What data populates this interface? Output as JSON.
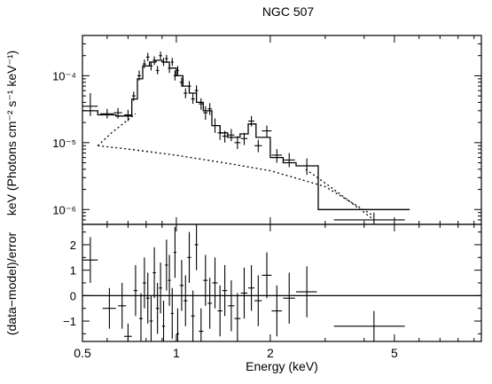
{
  "chart_data": {
    "type": "scatter",
    "title": "NGC 507",
    "xlabel": "Energy (keV)",
    "xscale": "log",
    "xlim": [
      0.5,
      9.5
    ],
    "x_ticks": [
      {
        "value": 0.5,
        "label": "0.5"
      },
      {
        "value": 1,
        "label": "1"
      },
      {
        "value": 2,
        "label": "2"
      },
      {
        "value": 5,
        "label": "5"
      }
    ],
    "panels": {
      "spectrum": {
        "ylabel": "keV (Photons cm⁻² s⁻¹ keV⁻¹)",
        "yscale": "log",
        "ylim": [
          6e-07,
          0.0004
        ],
        "y_ticks": [
          {
            "value": 0.0001,
            "label": "10⁻⁴"
          },
          {
            "value": 1e-05,
            "label": "10⁻⁵"
          },
          {
            "value": 1e-06,
            "label": "10⁻⁶"
          }
        ],
        "data_points": [
          {
            "x": 0.53,
            "xerr": 0.03,
            "y": 3.5e-05,
            "yerr": [
              2.5e-05,
              5.5e-05
            ]
          },
          {
            "x": 0.6,
            "xerr": 0.03,
            "y": 2.7e-05,
            "yerr": [
              2.3e-05,
              3.2e-05
            ]
          },
          {
            "x": 0.65,
            "xerr": 0.02,
            "y": 2.8e-05,
            "yerr": [
              2.3e-05,
              3.3e-05
            ]
          },
          {
            "x": 0.7,
            "xerr": 0.02,
            "y": 2.6e-05,
            "yerr": [
              2.1e-05,
              3.1e-05
            ]
          },
          {
            "x": 0.73,
            "xerr": 0.01,
            "y": 5e-05,
            "yerr": [
              4.2e-05,
              5.8e-05
            ]
          },
          {
            "x": 0.76,
            "xerr": 0.01,
            "y": 0.0001,
            "yerr": [
              8.5e-05,
              0.00012
            ]
          },
          {
            "x": 0.79,
            "xerr": 0.01,
            "y": 0.00015,
            "yerr": [
              0.00013,
              0.000175
            ]
          },
          {
            "x": 0.81,
            "xerr": 0.01,
            "y": 0.00019,
            "yerr": [
              0.000165,
              0.00022
            ]
          },
          {
            "x": 0.83,
            "xerr": 0.01,
            "y": 0.00014,
            "yerr": [
              0.00012,
              0.00016
            ]
          },
          {
            "x": 0.85,
            "xerr": 0.01,
            "y": 0.00017,
            "yerr": [
              0.000145,
              0.000195
            ]
          },
          {
            "x": 0.87,
            "xerr": 0.01,
            "y": 0.00012,
            "yerr": [
              0.000105,
              0.00014
            ]
          },
          {
            "x": 0.89,
            "xerr": 0.01,
            "y": 0.0002,
            "yerr": [
              0.000175,
              0.00023
            ]
          },
          {
            "x": 0.91,
            "xerr": 0.01,
            "y": 0.00016,
            "yerr": [
              0.00014,
              0.000185
            ]
          },
          {
            "x": 0.93,
            "xerr": 0.01,
            "y": 0.00018,
            "yerr": [
              0.000155,
              0.000205
            ]
          },
          {
            "x": 0.95,
            "xerr": 0.01,
            "y": 0.00013,
            "yerr": [
              0.00011,
              0.00015
            ]
          },
          {
            "x": 0.97,
            "xerr": 0.01,
            "y": 0.00016,
            "yerr": [
              0.00014,
              0.000185
            ]
          },
          {
            "x": 0.99,
            "xerr": 0.01,
            "y": 0.0001,
            "yerr": [
              8.5e-05,
              0.00012
            ]
          },
          {
            "x": 1.01,
            "xerr": 0.01,
            "y": 0.00012,
            "yerr": [
              0.0001,
              0.00014
            ]
          },
          {
            "x": 1.04,
            "xerr": 0.015,
            "y": 8e-05,
            "yerr": [
              6.8e-05,
              9.4e-05
            ]
          },
          {
            "x": 1.07,
            "xerr": 0.015,
            "y": 5.5e-05,
            "yerr": [
              4.6e-05,
              6.5e-05
            ]
          },
          {
            "x": 1.1,
            "xerr": 0.015,
            "y": 7e-05,
            "yerr": [
              5.9e-05,
              8.3e-05
            ]
          },
          {
            "x": 1.13,
            "xerr": 0.015,
            "y": 4.5e-05,
            "yerr": [
              3.8e-05,
              5.4e-05
            ]
          },
          {
            "x": 1.16,
            "xerr": 0.015,
            "y": 6e-05,
            "yerr": [
              5e-05,
              7.2e-05
            ]
          },
          {
            "x": 1.2,
            "xerr": 0.02,
            "y": 3.8e-05,
            "yerr": [
              3.1e-05,
              4.6e-05
            ]
          },
          {
            "x": 1.24,
            "xerr": 0.02,
            "y": 2.8e-05,
            "yerr": [
              2.2e-05,
              3.5e-05
            ]
          },
          {
            "x": 1.28,
            "xerr": 0.02,
            "y": 3.2e-05,
            "yerr": [
              2.6e-05,
              3.9e-05
            ]
          },
          {
            "x": 1.33,
            "xerr": 0.025,
            "y": 1.8e-05,
            "yerr": [
              1.4e-05,
              2.3e-05
            ]
          },
          {
            "x": 1.38,
            "xerr": 0.025,
            "y": 1.4e-05,
            "yerr": [
              1.1e-05,
              1.8e-05
            ]
          },
          {
            "x": 1.43,
            "xerr": 0.025,
            "y": 1.25e-05,
            "yerr": [
              1e-05,
              1.5e-05
            ]
          },
          {
            "x": 1.5,
            "xerr": 0.035,
            "y": 1.3e-05,
            "yerr": [
              1.05e-05,
              1.6e-05
            ]
          },
          {
            "x": 1.57,
            "xerr": 0.035,
            "y": 1e-05,
            "yerr": [
              8e-06,
              1.25e-05
            ]
          },
          {
            "x": 1.65,
            "xerr": 0.04,
            "y": 1.15e-05,
            "yerr": [
              9.2e-06,
              1.4e-05
            ]
          },
          {
            "x": 1.74,
            "xerr": 0.04,
            "y": 2.1e-05,
            "yerr": [
              1.75e-05,
              2.5e-05
            ]
          },
          {
            "x": 1.83,
            "xerr": 0.05,
            "y": 9e-06,
            "yerr": [
              7.2e-06,
              1.1e-05
            ]
          },
          {
            "x": 1.95,
            "xerr": 0.07,
            "y": 1.5e-05,
            "yerr": [
              1.2e-05,
              1.8e-05
            ]
          },
          {
            "x": 2.1,
            "xerr": 0.08,
            "y": 6.5e-06,
            "yerr": [
              5e-06,
              8e-06
            ]
          },
          {
            "x": 2.3,
            "xerr": 0.1,
            "y": 5.5e-06,
            "yerr": [
              4.3e-06,
              7e-06
            ]
          },
          {
            "x": 2.62,
            "xerr": 0.2,
            "y": 4.5e-06,
            "yerr": [
              3.3e-06,
              5.8e-06
            ]
          },
          {
            "x": 4.3,
            "xerr": 1.1,
            "y": 7e-07,
            "yerr": [
              6e-07,
              9e-07
            ]
          }
        ],
        "total_model_steps": [
          [
            0.5,
            3e-05
          ],
          [
            0.56,
            3e-05
          ],
          [
            0.56,
            2.6e-05
          ],
          [
            0.64,
            2.6e-05
          ],
          [
            0.64,
            2.5e-05
          ],
          [
            0.72,
            2.5e-05
          ],
          [
            0.72,
            4.5e-05
          ],
          [
            0.75,
            4.5e-05
          ],
          [
            0.75,
            9e-05
          ],
          [
            0.78,
            9e-05
          ],
          [
            0.78,
            0.00014
          ],
          [
            0.82,
            0.00014
          ],
          [
            0.82,
            0.00016
          ],
          [
            0.86,
            0.00016
          ],
          [
            0.86,
            0.00017
          ],
          [
            0.9,
            0.00017
          ],
          [
            0.9,
            0.00016
          ],
          [
            0.95,
            0.00016
          ],
          [
            0.95,
            0.00013
          ],
          [
            1.0,
            0.00013
          ],
          [
            1.0,
            0.0001
          ],
          [
            1.05,
            0.0001
          ],
          [
            1.05,
            7e-05
          ],
          [
            1.1,
            7e-05
          ],
          [
            1.1,
            5.5e-05
          ],
          [
            1.16,
            5.5e-05
          ],
          [
            1.16,
            4e-05
          ],
          [
            1.22,
            4e-05
          ],
          [
            1.22,
            3e-05
          ],
          [
            1.3,
            3e-05
          ],
          [
            1.3,
            1.8e-05
          ],
          [
            1.38,
            1.8e-05
          ],
          [
            1.38,
            1.4e-05
          ],
          [
            1.46,
            1.4e-05
          ],
          [
            1.46,
            1.2e-05
          ],
          [
            1.6,
            1.2e-05
          ],
          [
            1.6,
            1.35e-05
          ],
          [
            1.7,
            1.35e-05
          ],
          [
            1.7,
            1.9e-05
          ],
          [
            1.8,
            1.9e-05
          ],
          [
            1.8,
            1.2e-05
          ],
          [
            2.0,
            1.2e-05
          ],
          [
            2.0,
            6e-06
          ],
          [
            2.2,
            6e-06
          ],
          [
            2.2,
            5e-06
          ],
          [
            2.42,
            5e-06
          ],
          [
            2.42,
            4.5e-06
          ],
          [
            2.85,
            4.5e-06
          ],
          [
            2.85,
            1e-06
          ],
          [
            5.6,
            1e-06
          ]
        ],
        "dotted_component": [
          [
            0.56,
            9e-06
          ],
          [
            0.7,
            8e-06
          ],
          [
            1.0,
            6.5e-06
          ],
          [
            1.5,
            4.8e-06
          ],
          [
            2.0,
            3.8e-06
          ],
          [
            3.0,
            2.2e-06
          ],
          [
            4.3,
            8e-07
          ]
        ],
        "dotted_total_start": [
          [
            0.56,
            9e-06
          ],
          [
            0.62,
            1.4e-05
          ],
          [
            0.7,
            2.2e-05
          ],
          [
            0.74,
            2.7e-05
          ]
        ],
        "dotted_total_end": [
          [
            2.6,
            4e-06
          ],
          [
            3.2,
            2e-06
          ],
          [
            4.3,
            7e-07
          ]
        ]
      },
      "residuals": {
        "ylabel": "(data−model)/error",
        "yscale": "linear",
        "ylim": [
          -1.8,
          2.8
        ],
        "y_ticks": [
          {
            "value": 2,
            "label": "2"
          },
          {
            "value": 1,
            "label": "1"
          },
          {
            "value": 0,
            "label": "0"
          },
          {
            "value": -1,
            "label": "−1"
          }
        ],
        "zero_line": 0,
        "data_points": [
          {
            "x": 0.53,
            "xerr": 0.03,
            "y": 1.4,
            "yerr": 0.9
          },
          {
            "x": 0.61,
            "xerr": 0.03,
            "y": -0.5,
            "yerr": 0.8
          },
          {
            "x": 0.67,
            "xerr": 0.02,
            "y": -0.4,
            "yerr": 0.9
          },
          {
            "x": 0.7,
            "xerr": 0.02,
            "y": -1.6,
            "yerr": 0.5
          },
          {
            "x": 0.74,
            "xerr": 0.01,
            "y": 0.2,
            "yerr": 1.0
          },
          {
            "x": 0.77,
            "xerr": 0.01,
            "y": -0.9,
            "yerr": 1.0
          },
          {
            "x": 0.79,
            "xerr": 0.01,
            "y": 0.5,
            "yerr": 1.0
          },
          {
            "x": 0.81,
            "xerr": 0.01,
            "y": -0.1,
            "yerr": 1.0
          },
          {
            "x": 0.83,
            "xerr": 0.01,
            "y": -1.0,
            "yerr": 1.0
          },
          {
            "x": 0.85,
            "xerr": 0.01,
            "y": 0.9,
            "yerr": 1.0
          },
          {
            "x": 0.87,
            "xerr": 0.01,
            "y": -0.5,
            "yerr": 1.0
          },
          {
            "x": 0.89,
            "xerr": 0.01,
            "y": 0.3,
            "yerr": 1.0
          },
          {
            "x": 0.91,
            "xerr": 0.01,
            "y": -1.2,
            "yerr": 1.0
          },
          {
            "x": 0.93,
            "xerr": 0.01,
            "y": 1.2,
            "yerr": 1.0
          },
          {
            "x": 0.95,
            "xerr": 0.01,
            "y": 0.6,
            "yerr": 1.0
          },
          {
            "x": 0.97,
            "xerr": 0.01,
            "y": -0.7,
            "yerr": 1.0
          },
          {
            "x": 0.99,
            "xerr": 0.01,
            "y": 1.7,
            "yerr": 1.0
          },
          {
            "x": 1.01,
            "xerr": 0.01,
            "y": -1.5,
            "yerr": 1.0
          },
          {
            "x": 1.04,
            "xerr": 0.015,
            "y": 0.4,
            "yerr": 1.0
          },
          {
            "x": 1.07,
            "xerr": 0.015,
            "y": -0.2,
            "yerr": 1.0
          },
          {
            "x": 1.1,
            "xerr": 0.015,
            "y": 1.5,
            "yerr": 1.0
          },
          {
            "x": 1.13,
            "xerr": 0.015,
            "y": -0.8,
            "yerr": 1.0
          },
          {
            "x": 1.16,
            "xerr": 0.015,
            "y": 2.0,
            "yerr": 1.0
          },
          {
            "x": 1.2,
            "xerr": 0.02,
            "y": -1.4,
            "yerr": 0.9
          },
          {
            "x": 1.24,
            "xerr": 0.02,
            "y": 0.6,
            "yerr": 1.0
          },
          {
            "x": 1.28,
            "xerr": 0.02,
            "y": -0.3,
            "yerr": 1.0
          },
          {
            "x": 1.33,
            "xerr": 0.025,
            "y": 0.5,
            "yerr": 1.0
          },
          {
            "x": 1.38,
            "xerr": 0.025,
            "y": -0.6,
            "yerr": 1.0
          },
          {
            "x": 1.43,
            "xerr": 0.025,
            "y": 0.2,
            "yerr": 1.0
          },
          {
            "x": 1.5,
            "xerr": 0.035,
            "y": -0.4,
            "yerr": 1.0
          },
          {
            "x": 1.57,
            "xerr": 0.035,
            "y": -0.9,
            "yerr": 1.0
          },
          {
            "x": 1.65,
            "xerr": 0.04,
            "y": 0.1,
            "yerr": 1.0
          },
          {
            "x": 1.74,
            "xerr": 0.04,
            "y": 0.3,
            "yerr": 0.9
          },
          {
            "x": 1.83,
            "xerr": 0.05,
            "y": -0.2,
            "yerr": 1.0
          },
          {
            "x": 1.95,
            "xerr": 0.07,
            "y": 0.8,
            "yerr": 0.9
          },
          {
            "x": 2.1,
            "xerr": 0.08,
            "y": -0.6,
            "yerr": 1.0
          },
          {
            "x": 2.3,
            "xerr": 0.1,
            "y": -0.1,
            "yerr": 1.0
          },
          {
            "x": 2.62,
            "xerr": 0.2,
            "y": 0.15,
            "yerr": 1.0
          },
          {
            "x": 4.3,
            "xerr": 1.1,
            "y": -1.2,
            "yerr": 0.6
          }
        ]
      }
    }
  }
}
